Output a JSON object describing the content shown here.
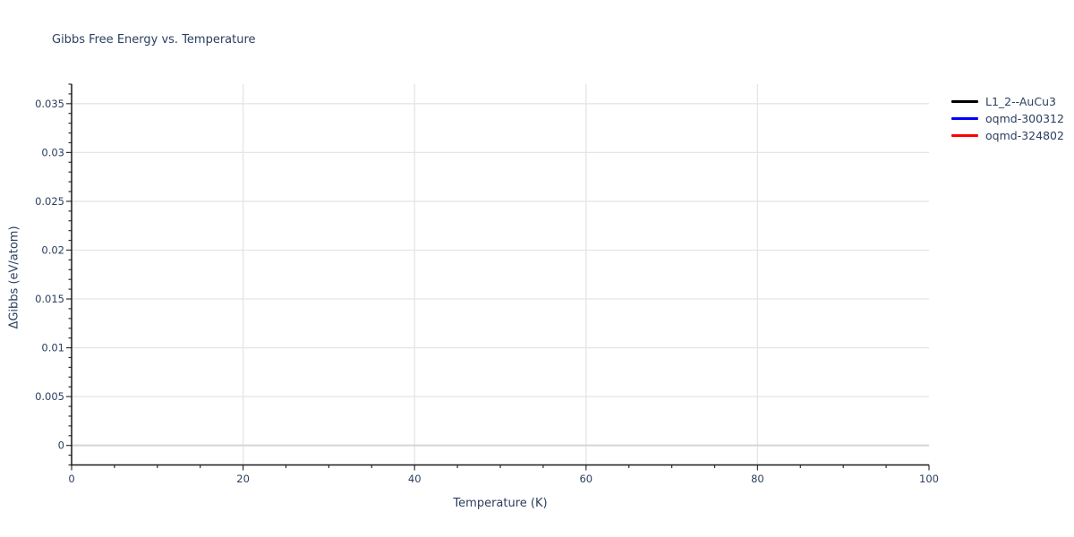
{
  "chart_data": {
    "type": "line",
    "title": "Gibbs Free Energy vs. Temperature",
    "xlabel": "Temperature (K)",
    "ylabel": "ΔGibbs (eV/atom)",
    "xlim": [
      0,
      100
    ],
    "ylim": [
      -0.002,
      0.037
    ],
    "x_major_ticks": [
      0,
      20,
      40,
      60,
      80,
      100
    ],
    "x_tick_labels": [
      "0",
      "20",
      "40",
      "60",
      "80",
      "100"
    ],
    "x_minor_step": 5,
    "y_major_ticks": [
      0,
      0.005,
      0.01,
      0.015,
      0.02,
      0.025,
      0.03,
      0.035
    ],
    "y_tick_labels": [
      "0",
      "0.005",
      "0.01",
      "0.015",
      "0.02",
      "0.025",
      "0.03",
      "0.035"
    ],
    "y_minor_step": 0.001,
    "grid": true,
    "legend_position": "top-right-outside",
    "series": [
      {
        "name": "L1_2--AuCu3",
        "color": "#000000",
        "x": [],
        "values": []
      },
      {
        "name": "oqmd-300312",
        "color": "#0000ff",
        "x": [],
        "values": []
      },
      {
        "name": "oqmd-324802",
        "color": "#ff0000",
        "x": [],
        "values": []
      }
    ],
    "colors": {
      "background": "#ffffff",
      "text": "#2a3f5f",
      "grid": "#e5e5e5",
      "zero_line": "#d4d4d4",
      "axis_line": "#1a1a1a",
      "tick_mark": "#333333"
    }
  }
}
